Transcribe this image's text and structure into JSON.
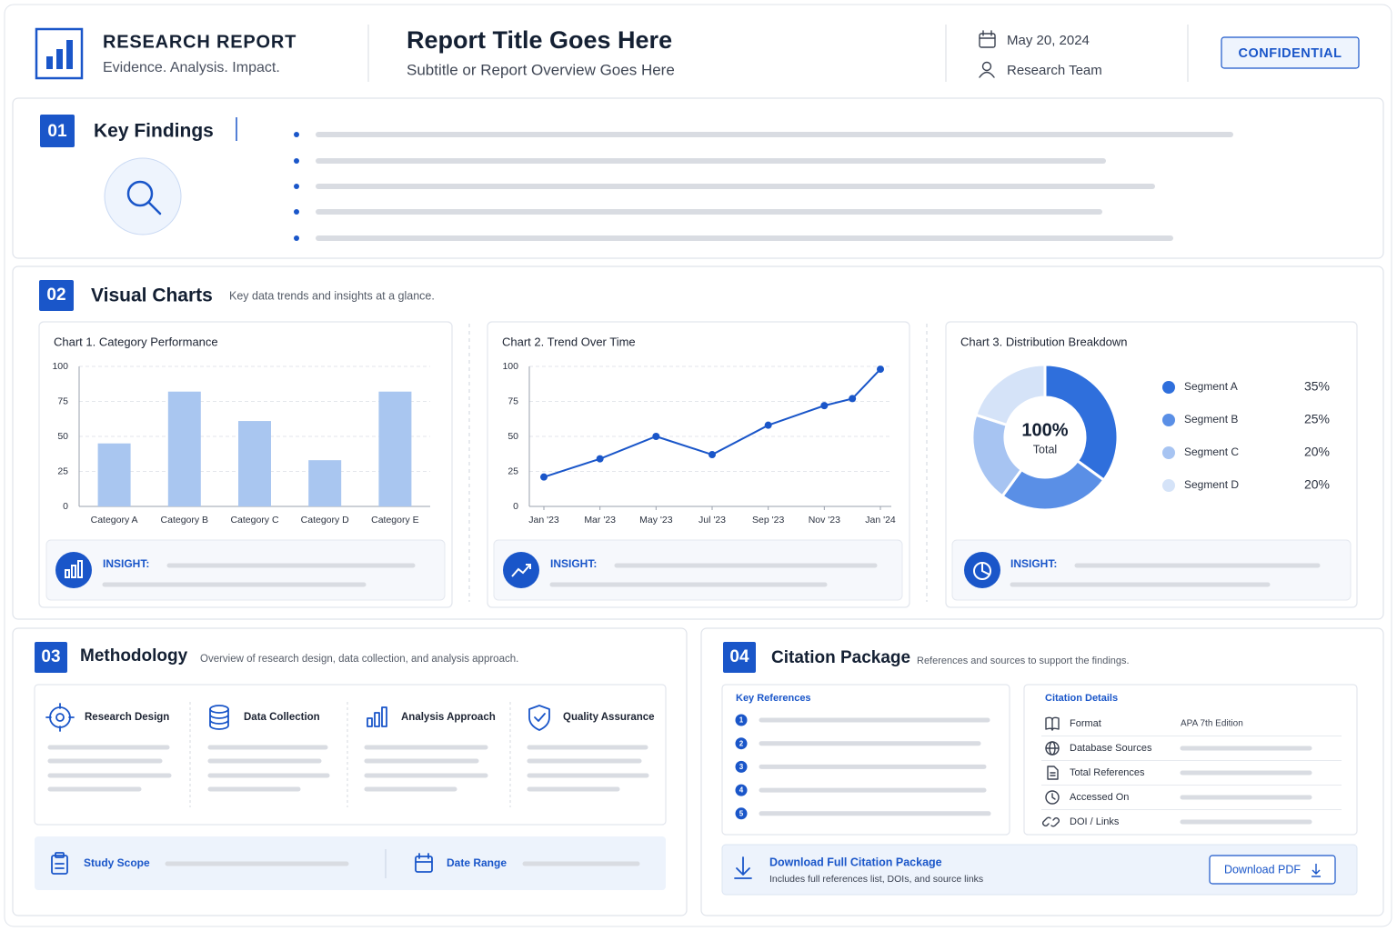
{
  "header": {
    "brand": "RESEARCH REPORT",
    "tagline": "Evidence. Analysis. Impact.",
    "title": "Report Title Goes Here",
    "subtitle": "Subtitle or Report Overview Goes Here",
    "date": "May 20, 2024",
    "author": "Research Team",
    "badge": "CONFIDENTIAL"
  },
  "findings": {
    "number": "01",
    "title": "Key Findings"
  },
  "charts_section": {
    "number": "02",
    "title": "Visual Charts",
    "description": "Key data trends and insights at a glance.",
    "insight_label": "INSIGHT:"
  },
  "chart_data": [
    {
      "type": "bar",
      "title": "Chart 1.  Category Performance",
      "categories": [
        "Category A",
        "Category B",
        "Category C",
        "Category D",
        "Category E"
      ],
      "values": [
        45,
        82,
        61,
        33,
        82
      ],
      "color": "#a9c6f0",
      "ylim": [
        0,
        100
      ],
      "yticks": [
        0,
        25,
        50,
        75,
        100
      ],
      "grid": true
    },
    {
      "type": "line",
      "title": "Chart 2.  Trend Over Time",
      "x": [
        0,
        2,
        4,
        6,
        8,
        10,
        11,
        12
      ],
      "values": [
        21,
        34,
        50,
        37,
        58,
        72,
        77,
        98
      ],
      "color": "#1a56c9",
      "xlim": [
        0,
        12
      ],
      "xticks": [
        {
          "value": 0,
          "label": "Jan '23"
        },
        {
          "value": 2,
          "label": "Mar '23"
        },
        {
          "value": 4,
          "label": "May '23"
        },
        {
          "value": 6,
          "label": "Jul '23"
        },
        {
          "value": 8,
          "label": "Sep '23"
        },
        {
          "value": 10,
          "label": "Nov '23"
        },
        {
          "value": 12,
          "label": "Jan '24"
        }
      ],
      "ylim": [
        0,
        100
      ],
      "yticks": [
        0,
        25,
        50,
        75,
        100
      ],
      "grid": true
    },
    {
      "type": "pie",
      "title": "Chart 3.  Distribution Breakdown",
      "categories": [
        "Segment A",
        "Segment B",
        "Segment C",
        "Segment D"
      ],
      "values": [
        35,
        25,
        20,
        20
      ],
      "value_labels": [
        "35%",
        "25%",
        "20%",
        "20%"
      ],
      "colors": [
        "#2f6fdc",
        "#5a8fe6",
        "#a7c4f2",
        "#d5e3f8"
      ],
      "center_label": "100%",
      "center_sublabel": "Total"
    }
  ],
  "methodology": {
    "number": "03",
    "title": "Methodology",
    "description": "Overview of research design, data collection, and analysis approach.",
    "items": [
      "Research Design",
      "Data Collection",
      "Analysis Approach",
      "Quality Assurance"
    ],
    "scope": "Study Scope",
    "range": "Date Range"
  },
  "citation": {
    "number": "04",
    "title": "Citation Package",
    "description": "References and sources to support the findings.",
    "references_title": "Key References",
    "reference_numbers": [
      "1",
      "2",
      "3",
      "4",
      "5"
    ],
    "details_title": "Citation Details",
    "details": [
      {
        "label": "Format",
        "value": "APA 7th Edition"
      },
      {
        "label": "Database Sources"
      },
      {
        "label": "Total References"
      },
      {
        "label": "Accessed On"
      },
      {
        "label": "DOI / Links"
      }
    ],
    "download_title": "Download Full Citation Package",
    "download_note": "Includes full references list, DOIs, and source links",
    "download_button": "Download PDF"
  }
}
